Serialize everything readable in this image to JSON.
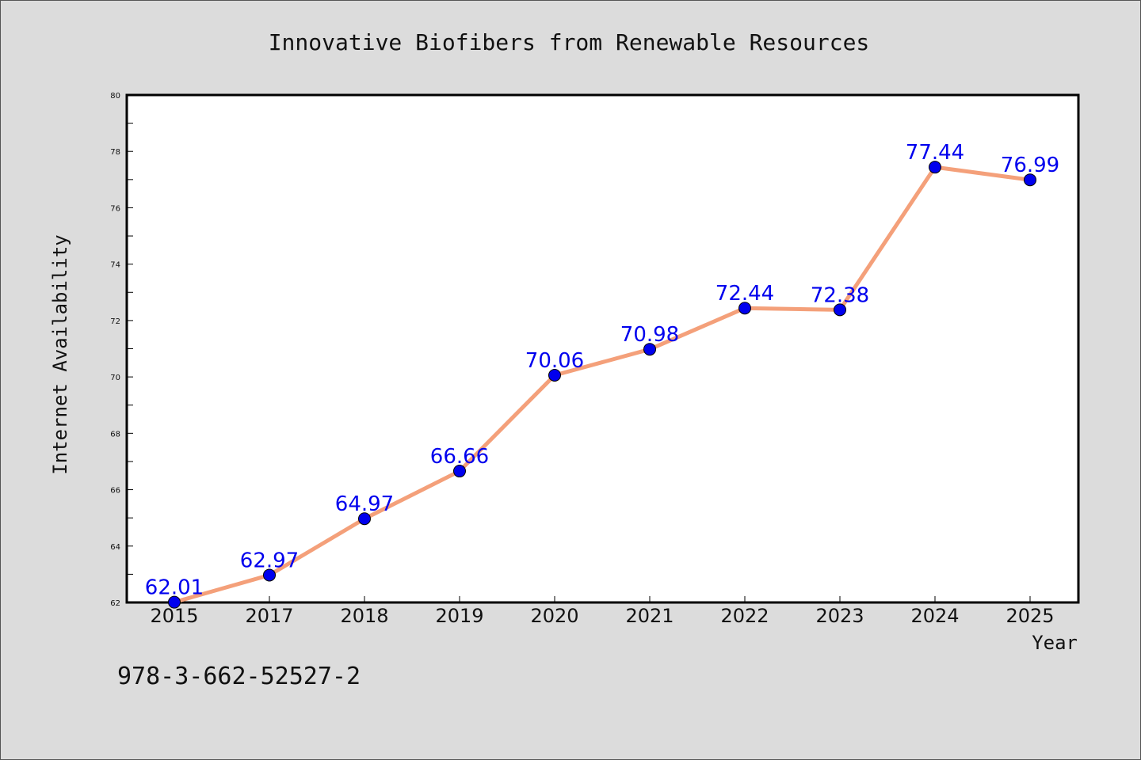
{
  "chart_data": {
    "type": "line",
    "title": "Innovative Biofibers from Renewable Resources",
    "xlabel": "Year",
    "ylabel": "Internet Availability",
    "categories": [
      "2015",
      "2017",
      "2018",
      "2019",
      "2020",
      "2021",
      "2022",
      "2023",
      "2024",
      "2025"
    ],
    "series": [
      {
        "values": [
          62.01,
          62.97,
          64.97,
          66.66,
          70.06,
          70.98,
          72.44,
          72.38,
          77.44,
          76.99
        ],
        "data_labels": [
          "62.01",
          "62.97",
          "64.97",
          "66.66",
          "70.06",
          "70.98",
          "72.44",
          "72.38",
          "77.44",
          "76.99"
        ],
        "line_color": "#f4a07a",
        "marker_color": "#0000ee",
        "label_color": "#0000ee"
      }
    ],
    "ylim": [
      62,
      80
    ],
    "yticks": [
      "62",
      "64",
      "66",
      "68",
      "70",
      "72",
      "74",
      "76",
      "78",
      "80"
    ],
    "grid": false,
    "legend": "none"
  },
  "footer": {
    "isbn": "978-3-662-52527-2"
  },
  "colors": {
    "background": "#dcdcdc",
    "plot_background": "#ffffff",
    "axis": "#000000"
  }
}
